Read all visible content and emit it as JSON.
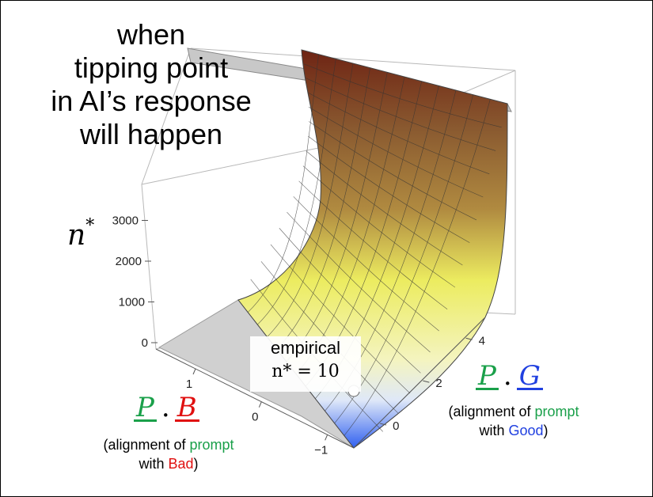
{
  "title_lines": [
    "when",
    "tipping point",
    "in AI’s response",
    "will happen"
  ],
  "z_label": "n*",
  "x_label": {
    "vec1": "P",
    "vec2": "B",
    "dot": ".",
    "caption_pre": "(alignment of ",
    "caption_green": "prompt",
    "caption_mid": "with ",
    "caption_red": "Bad",
    "caption_post": ")"
  },
  "y_label": {
    "vec1": "P",
    "vec2": "G",
    "dot": ".",
    "caption_pre": "(alignment of ",
    "caption_green": "prompt",
    "caption_mid": "with ",
    "caption_blue": "Good",
    "caption_post": ")"
  },
  "annotation": {
    "line1": "empirical",
    "line2": "n* = 10"
  },
  "colors": {
    "green": "#1aa04a",
    "red": "#e01010",
    "blue": "#2040e0",
    "surface_high": "#7a2e1a",
    "surface_mid": "#ecec60",
    "surface_low": "#3060f0"
  },
  "chart_data": {
    "type": "surface3d",
    "z_ticks": [
      0,
      1000,
      2000,
      3000
    ],
    "x_ticks": [
      1,
      0,
      -1
    ],
    "y_ticks": [
      0,
      2,
      4
    ],
    "z_range": [
      0,
      4000
    ],
    "x_range": [
      -1.4,
      1.6
    ],
    "y_range": [
      -1,
      5
    ],
    "grid": true,
    "point": {
      "x": -1,
      "y": 0.2,
      "z": 10
    },
    "surface_samples": [
      {
        "y": 5,
        "z": 4000
      },
      {
        "y": 4,
        "z": 2600
      },
      {
        "y": 3,
        "z": 1500
      },
      {
        "y": 2,
        "z": 700
      },
      {
        "y": 1,
        "z": 250
      },
      {
        "y": 0,
        "z": 50
      },
      {
        "y": -1,
        "z": 0
      }
    ]
  }
}
